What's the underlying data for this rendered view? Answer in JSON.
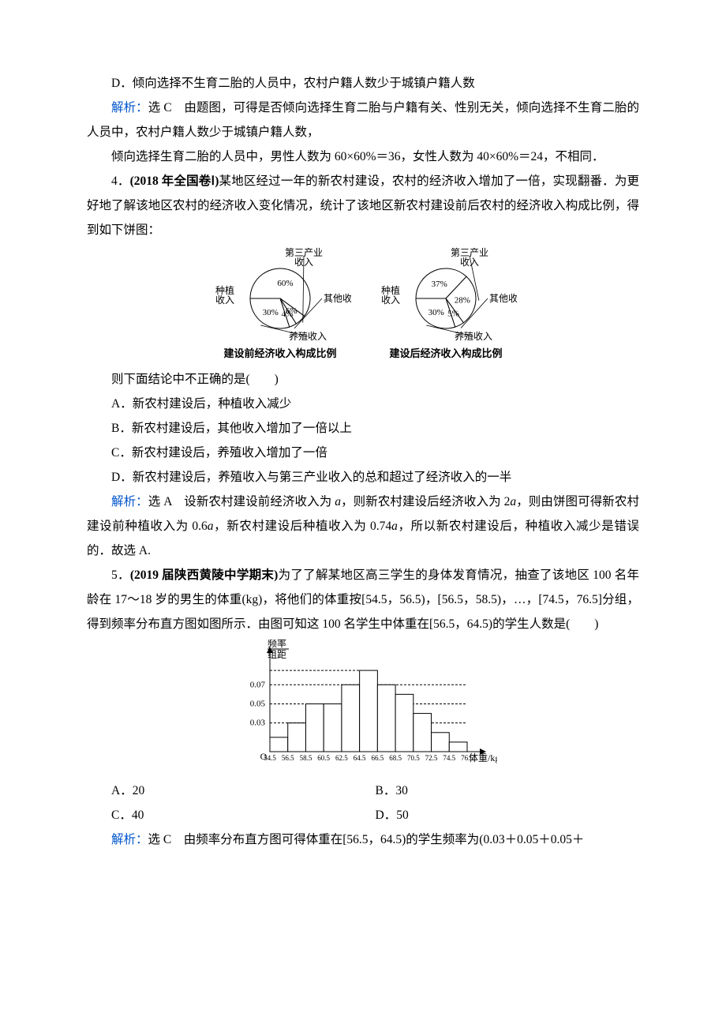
{
  "q3": {
    "optD": "D．倾向选择不生育二胎的人员中，农村户籍人数少于城镇户籍人数",
    "analysis_label": "解析：",
    "analysis_1a": "选 C　由题图，可得是否倾向选择生育二胎与户籍有关、性别无关，倾向选择不生育二胎的人员中，农村户籍人数少于城镇户籍人数，",
    "analysis_1b": "倾向选择生育二胎的人员中，男性人数为 60×60%＝36，女性人数为 40×60%＝24，不相同．"
  },
  "q4": {
    "stem_a": "4．",
    "stem_src": "(2018 年全国卷Ⅰ)",
    "stem_b": "某地区经过一年的新农村建设，农村的经济收入增加了一倍，实现翻番．为更好地了解该地区农村的经济收入变化情况，统计了该地区新农村建设前后农村的经济收入构成比例，得到如下饼图：",
    "pieA": {
      "caption": "建设前经济收入构成比例",
      "slices": [
        {
          "label": "种植\n收入",
          "pct": 60,
          "color": "#ffffff"
        },
        {
          "label": "第三产业\n收入",
          "pct": 6,
          "color": "#ffffff"
        },
        {
          "label": "其他收入",
          "pct": 4,
          "color": "#ffffff"
        },
        {
          "label": "养殖收入",
          "pct": 30,
          "color": "#ffffff"
        }
      ],
      "stroke": "#000000",
      "innerLabels": [
        "60%",
        "6%",
        "4%",
        "30%"
      ]
    },
    "pieB": {
      "caption": "建设后经济收入构成比例",
      "slices": [
        {
          "label": "种植\n收入",
          "pct": 37,
          "color": "#ffffff"
        },
        {
          "label": "第三产业\n收入",
          "pct": 28,
          "color": "#ffffff"
        },
        {
          "label": "其他收入",
          "pct": 5,
          "color": "#ffffff"
        },
        {
          "label": "养殖收入",
          "pct": 30,
          "color": "#ffffff"
        }
      ],
      "stroke": "#000000",
      "innerLabels": [
        "37%",
        "28%",
        "5%",
        "30%"
      ]
    },
    "q_line": "则下面结论中不正确的是(　　)",
    "optA": "A．新农村建设后，种植收入减少",
    "optB": "B．新农村建设后，其他收入增加了一倍以上",
    "optC": "C．新农村建设后，养殖收入增加了一倍",
    "optD": "D．新农村建设后，养殖收入与第三产业收入的总和超过了经济收入的一半",
    "analysis_label": "解析：",
    "analysis_text_a": "选 A　设新农村建设前经济收入为 ",
    "analysis_a": "a",
    "analysis_text_b": "，则新农村建设后经济收入为 2",
    "analysis_text_c": "，则由饼图可得新农村建设前种植收入为 0.6",
    "analysis_text_d": "，新农村建设后种植收入为 0.74",
    "analysis_text_e": "，所以新农村建设后，种植收入减少是错误的．故选 A."
  },
  "q5": {
    "stem_a": "5．",
    "stem_src": "(2019 届陕西黄陵中学期末)",
    "stem_b": "为了了解某地区高三学生的身体发育情况，抽查了该地区 100 名年龄在 17～18 岁的男生的体重(kg)，将他们的体重按[54.5，56.5)，[56.5，58.5)，…，[74.5，76.5]分组，得到频率分布直方图如图所示．由图可知这 100 名学生中体重在[56.5，64.5)的学生人数是(　　)",
    "histogram": {
      "ylabel_top": "频率",
      "ylabel_bot": "组距",
      "yticks": [
        0.03,
        0.05,
        0.07
      ],
      "xticks": [
        "54.5",
        "56.5",
        "58.5",
        "60.5",
        "62.5",
        "64.5",
        "66.5",
        "68.5",
        "70.5",
        "72.5",
        "74.5",
        "76.5"
      ],
      "xlabel": "体重/kg",
      "bars": [
        0.015,
        0.03,
        0.05,
        0.05,
        0.07,
        0.085,
        0.07,
        0.06,
        0.04,
        0.02,
        0.01
      ],
      "bar_fill": "#ffffff",
      "bar_stroke": "#000000",
      "ymax": 0.095
    },
    "optA": "A．20",
    "optB": "B．30",
    "optC": "C．40",
    "optD": "D．50",
    "analysis_label": "解析：",
    "analysis_text": "选 C　由频率分布直方图可得体重在[56.5，64.5)的学生频率为(0.03＋0.05＋0.05＋"
  }
}
